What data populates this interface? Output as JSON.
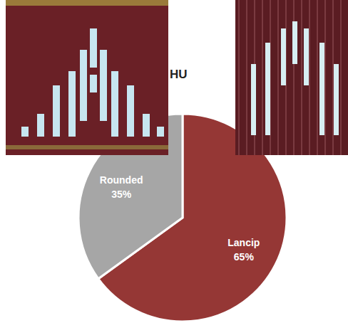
{
  "chart_data": {
    "type": "pie",
    "title": "HU",
    "categories": [
      "Lancip",
      "Rounded"
    ],
    "values": [
      65,
      35
    ],
    "value_labels": [
      "65%",
      "35%"
    ],
    "colors": [
      "#953735",
      "#a6a6a6"
    ],
    "data_labels": true
  }
}
